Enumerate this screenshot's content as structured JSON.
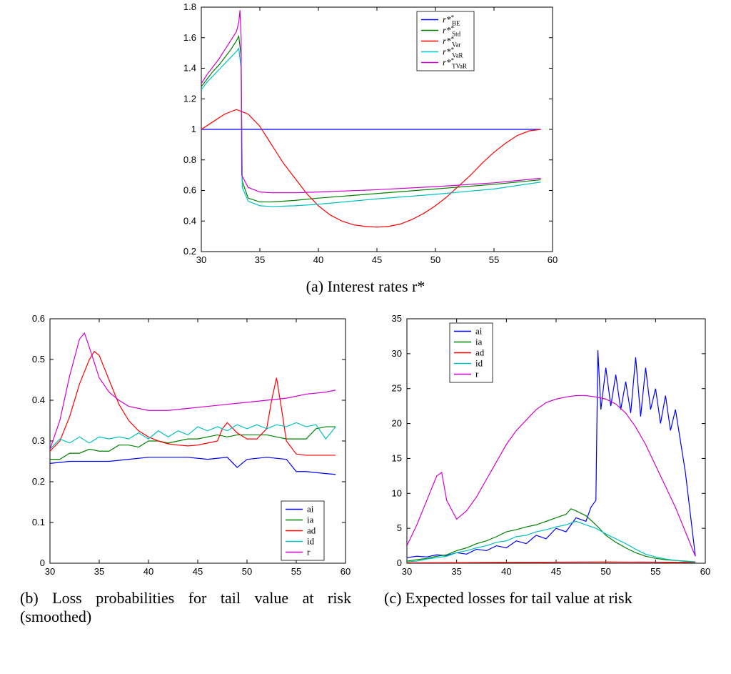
{
  "figure": {
    "top": {
      "caption": "(a)  Interest rates r*",
      "chart": {
        "type": "line",
        "xlim": [
          30,
          60
        ],
        "ylim": [
          0.2,
          1.8
        ],
        "xticks": [
          30,
          35,
          40,
          45,
          50,
          55,
          60
        ],
        "yticks": [
          0.2,
          0.4,
          0.6,
          0.8,
          1,
          1.2,
          1.4,
          1.6,
          1.8
        ],
        "background_color": "#ffffff",
        "axis_color": "#000000",
        "tick_fontsize": 13,
        "line_width": 1.2,
        "legend": {
          "position": "top-right",
          "items": [
            {
              "label": "r*",
              "sub": "BE",
              "color": "#0000ff"
            },
            {
              "label": "r*",
              "sub": "Std",
              "color": "#008000"
            },
            {
              "label": "r*",
              "sub": "Var",
              "color": "#ff0000"
            },
            {
              "label": "r*",
              "sub": "VaR",
              "color": "#00c0c0"
            },
            {
              "label": "r*",
              "sub": "TVaR",
              "color": "#d000d0"
            }
          ]
        },
        "series": [
          {
            "name": "BE",
            "color": "#0000ff",
            "x": [
              30,
              59
            ],
            "y": [
              1.0,
              1.0
            ]
          },
          {
            "name": "Std",
            "color": "#008000",
            "x": [
              30,
              30.5,
              31,
              31.5,
              32,
              32.5,
              33,
              33.2,
              33.4,
              33.5,
              34,
              35,
              36,
              38,
              40,
              45,
              50,
              55,
              59
            ],
            "y": [
              1.28,
              1.33,
              1.38,
              1.42,
              1.47,
              1.52,
              1.58,
              1.61,
              1.48,
              0.66,
              0.55,
              0.525,
              0.525,
              0.535,
              0.55,
              0.58,
              0.61,
              0.64,
              0.67
            ]
          },
          {
            "name": "Var",
            "color": "#ff0000",
            "x": [
              30,
              31,
              32,
              33,
              34,
              35,
              36,
              37,
              38,
              39,
              40,
              41,
              42,
              43,
              44,
              45,
              46,
              47,
              48,
              49,
              50,
              51,
              52,
              53,
              54,
              55,
              56,
              57,
              58,
              59
            ],
            "y": [
              1.0,
              1.05,
              1.1,
              1.13,
              1.1,
              1.02,
              0.9,
              0.78,
              0.68,
              0.58,
              0.5,
              0.44,
              0.4,
              0.375,
              0.365,
              0.36,
              0.365,
              0.38,
              0.41,
              0.45,
              0.5,
              0.56,
              0.63,
              0.7,
              0.78,
              0.85,
              0.91,
              0.96,
              0.99,
              1.0
            ]
          },
          {
            "name": "VaR",
            "color": "#00c0c0",
            "x": [
              30,
              30.5,
              31,
              31.5,
              32,
              32.5,
              33,
              33.2,
              33.4,
              33.5,
              34,
              35,
              36,
              38,
              40,
              45,
              50,
              55,
              59
            ],
            "y": [
              1.26,
              1.31,
              1.35,
              1.39,
              1.43,
              1.47,
              1.51,
              1.53,
              1.4,
              0.62,
              0.53,
              0.5,
              0.495,
              0.5,
              0.51,
              0.545,
              0.575,
              0.61,
              0.655
            ]
          },
          {
            "name": "TVaR",
            "color": "#d000d0",
            "x": [
              30,
              30.5,
              31,
              31.5,
              32,
              32.5,
              33,
              33.2,
              33.3,
              33.4,
              33.45,
              34,
              35,
              36,
              38,
              40,
              45,
              50,
              55,
              59
            ],
            "y": [
              1.3,
              1.36,
              1.41,
              1.46,
              1.52,
              1.58,
              1.64,
              1.7,
              1.78,
              1.6,
              0.7,
              0.62,
              0.59,
              0.585,
              0.585,
              0.59,
              0.605,
              0.625,
              0.65,
              0.68
            ]
          }
        ]
      }
    },
    "bottom_left": {
      "caption": "(b)  Loss probabilities for tail value at risk (smoothed)",
      "chart": {
        "type": "line",
        "xlim": [
          30,
          60
        ],
        "ylim": [
          0,
          0.6
        ],
        "xticks": [
          30,
          35,
          40,
          45,
          50,
          55,
          60
        ],
        "yticks": [
          0,
          0.1,
          0.2,
          0.3,
          0.4,
          0.5,
          0.6
        ],
        "background_color": "#ffffff",
        "axis_color": "#000000",
        "tick_fontsize": 13,
        "line_width": 1.2,
        "legend": {
          "position": "bottom-right",
          "items": [
            {
              "label": "ai",
              "color": "#0000ff"
            },
            {
              "label": "ia",
              "color": "#008000"
            },
            {
              "label": "ad",
              "color": "#ff0000"
            },
            {
              "label": "id",
              "color": "#00c0c0"
            },
            {
              "label": "r",
              "color": "#d000d0"
            }
          ]
        },
        "series": [
          {
            "name": "ai",
            "color": "#0000ff",
            "x": [
              30,
              32,
              34,
              36,
              38,
              40,
              42,
              44,
              46,
              48,
              49,
              50,
              52,
              54,
              55,
              56,
              58,
              59
            ],
            "y": [
              0.245,
              0.25,
              0.25,
              0.25,
              0.255,
              0.26,
              0.26,
              0.26,
              0.255,
              0.26,
              0.235,
              0.255,
              0.26,
              0.255,
              0.225,
              0.225,
              0.22,
              0.218
            ]
          },
          {
            "name": "ia",
            "color": "#008000",
            "x": [
              30,
              31,
              32,
              33,
              34,
              35,
              36,
              37,
              38,
              39,
              40,
              41,
              42,
              43,
              44,
              45,
              46,
              47,
              48,
              49,
              50,
              51,
              52,
              53,
              54,
              55,
              56,
              57,
              58,
              59
            ],
            "y": [
              0.255,
              0.255,
              0.27,
              0.27,
              0.28,
              0.275,
              0.275,
              0.29,
              0.29,
              0.285,
              0.3,
              0.3,
              0.295,
              0.3,
              0.305,
              0.305,
              0.31,
              0.315,
              0.31,
              0.315,
              0.315,
              0.315,
              0.315,
              0.31,
              0.305,
              0.305,
              0.305,
              0.33,
              0.335,
              0.335
            ]
          },
          {
            "name": "ad",
            "color": "#ff0000",
            "x": [
              30,
              31,
              32,
              33,
              34,
              34.5,
              35,
              36,
              37,
              38,
              39,
              40,
              41,
              42,
              43,
              44,
              45,
              46,
              47,
              47.5,
              48,
              49,
              50,
              51,
              52,
              52.5,
              53,
              53.5,
              54,
              55,
              56,
              57,
              58,
              59
            ],
            "y": [
              0.275,
              0.3,
              0.36,
              0.44,
              0.5,
              0.52,
              0.51,
              0.45,
              0.39,
              0.35,
              0.325,
              0.31,
              0.3,
              0.293,
              0.29,
              0.288,
              0.29,
              0.295,
              0.3,
              0.33,
              0.345,
              0.32,
              0.305,
              0.305,
              0.33,
              0.4,
              0.455,
              0.38,
              0.3,
              0.268,
              0.265,
              0.265,
              0.265,
              0.265
            ]
          },
          {
            "name": "id",
            "color": "#00c0c0",
            "x": [
              30,
              31,
              32,
              33,
              34,
              35,
              36,
              37,
              38,
              39,
              40,
              41,
              42,
              43,
              44,
              45,
              46,
              47,
              48,
              49,
              50,
              51,
              52,
              53,
              54,
              55,
              56,
              57,
              58,
              59
            ],
            "y": [
              0.28,
              0.305,
              0.295,
              0.31,
              0.295,
              0.31,
              0.305,
              0.31,
              0.305,
              0.32,
              0.305,
              0.325,
              0.31,
              0.325,
              0.315,
              0.335,
              0.325,
              0.335,
              0.325,
              0.34,
              0.33,
              0.34,
              0.33,
              0.34,
              0.335,
              0.345,
              0.335,
              0.34,
              0.305,
              0.335
            ]
          },
          {
            "name": "r",
            "color": "#d000d0",
            "x": [
              30,
              31,
              32,
              33,
              33.5,
              34,
              35,
              36,
              37,
              38,
              40,
              42,
              44,
              46,
              48,
              50,
              52,
              54,
              56,
              58,
              59
            ],
            "y": [
              0.28,
              0.35,
              0.46,
              0.55,
              0.565,
              0.53,
              0.455,
              0.42,
              0.4,
              0.385,
              0.375,
              0.375,
              0.38,
              0.385,
              0.39,
              0.395,
              0.4,
              0.405,
              0.415,
              0.42,
              0.425
            ]
          }
        ]
      }
    },
    "bottom_right": {
      "caption": "(c)  Expected losses for tail value at risk",
      "chart": {
        "type": "line",
        "xlim": [
          30,
          60
        ],
        "ylim": [
          0,
          35
        ],
        "xticks": [
          30,
          35,
          40,
          45,
          50,
          55,
          60
        ],
        "yticks": [
          0,
          5,
          10,
          15,
          20,
          25,
          30,
          35
        ],
        "background_color": "#ffffff",
        "axis_color": "#000000",
        "tick_fontsize": 13,
        "line_width": 1.2,
        "legend": {
          "position": "top-inside",
          "items": [
            {
              "label": "ai",
              "color": "#0000ff"
            },
            {
              "label": "ia",
              "color": "#008000"
            },
            {
              "label": "ad",
              "color": "#ff0000"
            },
            {
              "label": "id",
              "color": "#00c0c0"
            },
            {
              "label": "r",
              "color": "#d000d0"
            }
          ]
        },
        "series": [
          {
            "name": "ai",
            "color": "#0000ff",
            "x": [
              30,
              31,
              32,
              33,
              34,
              35,
              36,
              37,
              38,
              39,
              40,
              41,
              42,
              43,
              44,
              45,
              46,
              47,
              48,
              48.5,
              49,
              49.2,
              49.5,
              50,
              50.5,
              51,
              51.5,
              52,
              52.5,
              53,
              53.5,
              54,
              54.5,
              55,
              55.5,
              56,
              56.5,
              57,
              58,
              59
            ],
            "y": [
              0.8,
              1.0,
              0.9,
              1.2,
              1.1,
              1.5,
              1.3,
              2.0,
              1.8,
              2.5,
              2.2,
              3.2,
              2.8,
              4.0,
              3.5,
              5.0,
              4.5,
              6.5,
              6.0,
              8.0,
              9.0,
              30.5,
              22.0,
              28.0,
              22.5,
              27.0,
              22.0,
              26.0,
              21.5,
              29.5,
              21.0,
              28.0,
              22.0,
              25.0,
              20.0,
              24.0,
              19.0,
              22.0,
              13.0,
              1.0
            ]
          },
          {
            "name": "ia",
            "color": "#008000",
            "x": [
              30,
              31,
              32,
              33,
              34,
              35,
              36,
              37,
              38,
              39,
              40,
              41,
              42,
              43,
              44,
              45,
              46,
              46.5,
              47,
              48,
              49,
              50,
              51,
              52,
              53,
              54,
              55,
              56,
              57,
              58,
              59
            ],
            "y": [
              0.3,
              0.5,
              0.7,
              1.0,
              1.2,
              1.8,
              2.2,
              2.8,
              3.2,
              3.8,
              4.5,
              4.8,
              5.2,
              5.5,
              6.0,
              6.5,
              7.0,
              7.8,
              7.5,
              6.8,
              5.5,
              4.0,
              3.0,
              2.2,
              1.5,
              1.0,
              0.7,
              0.5,
              0.4,
              0.3,
              0.2
            ]
          },
          {
            "name": "ad",
            "color": "#ff0000",
            "x": [
              30,
              35,
              40,
              45,
              50,
              55,
              59
            ],
            "y": [
              0.05,
              0.08,
              0.12,
              0.15,
              0.18,
              0.15,
              0.1
            ]
          },
          {
            "name": "id",
            "color": "#00c0c0",
            "x": [
              30,
              31,
              32,
              33,
              34,
              35,
              36,
              37,
              38,
              39,
              40,
              41,
              42,
              43,
              44,
              45,
              46,
              47,
              48,
              49,
              50,
              51,
              52,
              53,
              54,
              55,
              56,
              57,
              58,
              59
            ],
            "y": [
              0.2,
              0.3,
              0.6,
              0.8,
              1.0,
              1.5,
              1.8,
              2.2,
              2.5,
              3.0,
              3.2,
              3.8,
              4.0,
              4.5,
              4.8,
              5.2,
              5.5,
              6.0,
              5.5,
              5.0,
              4.2,
              3.5,
              2.8,
              2.0,
              1.3,
              0.9,
              0.6,
              0.4,
              0.25,
              0.15
            ]
          },
          {
            "name": "r",
            "color": "#d000d0",
            "x": [
              30,
              31,
              32,
              33,
              33.5,
              34,
              35,
              36,
              37,
              38,
              39,
              40,
              41,
              42,
              43,
              44,
              45,
              46,
              47,
              48,
              49,
              50,
              51,
              52,
              53,
              54,
              55,
              56,
              57,
              58,
              59
            ],
            "y": [
              2.5,
              5.5,
              9.0,
              12.5,
              13.0,
              9.0,
              6.3,
              7.5,
              9.5,
              12.0,
              14.5,
              17.0,
              19.0,
              20.5,
              22.0,
              23.0,
              23.5,
              23.8,
              24.0,
              24.0,
              23.8,
              23.5,
              22.8,
              21.5,
              19.5,
              17.0,
              14.0,
              11.0,
              8.0,
              4.5,
              1.0
            ]
          }
        ]
      }
    }
  }
}
